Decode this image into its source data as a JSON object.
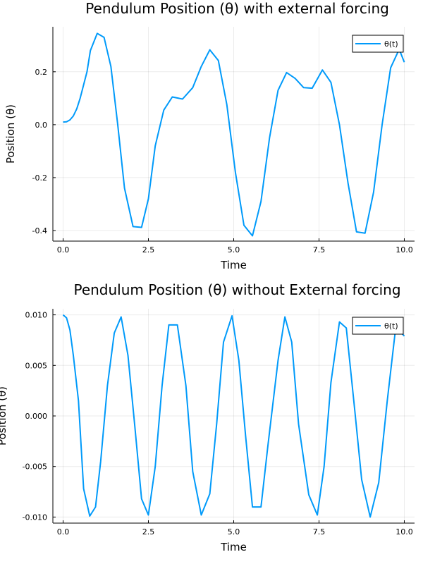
{
  "chart_data": [
    {
      "type": "line",
      "title": "Pendulum Position (θ) with external forcing",
      "xlabel": "Time",
      "ylabel": "Position (θ)",
      "xlim": [
        -0.3,
        10.3
      ],
      "ylim": [
        -0.44,
        0.37
      ],
      "xticks": [
        0,
        2.5,
        5,
        7.5,
        10
      ],
      "xtick_labels": [
        "0.0",
        "2.5",
        "5.0",
        "7.5",
        "10.0"
      ],
      "yticks": [
        -0.4,
        -0.2,
        0,
        0.2
      ],
      "ytick_labels": [
        "-0.4",
        "-0.2",
        "0.0",
        "0.2"
      ],
      "grid": true,
      "legend": "top-right",
      "series": [
        {
          "name": "θ(t)",
          "color": "#009AFA",
          "x": [
            0,
            0.1,
            0.2,
            0.3,
            0.4,
            0.5,
            0.7,
            0.8,
            1.0,
            1.2,
            1.4,
            1.6,
            1.8,
            2.05,
            2.3,
            2.5,
            2.7,
            2.95,
            3.2,
            3.5,
            3.8,
            4.05,
            4.3,
            4.55,
            4.8,
            5.05,
            5.3,
            5.55,
            5.8,
            6.05,
            6.3,
            6.55,
            6.8,
            7.05,
            7.3,
            7.6,
            7.85,
            8.1,
            8.35,
            8.6,
            8.85,
            9.1,
            9.35,
            9.6,
            9.85,
            10.0
          ],
          "y": [
            0.01,
            0.011,
            0.018,
            0.033,
            0.06,
            0.1,
            0.2,
            0.28,
            0.345,
            0.33,
            0.22,
            0.0,
            -0.24,
            -0.385,
            -0.388,
            -0.28,
            -0.08,
            0.055,
            0.105,
            0.097,
            0.14,
            0.22,
            0.283,
            0.243,
            0.075,
            -0.18,
            -0.38,
            -0.42,
            -0.29,
            -0.05,
            0.13,
            0.197,
            0.175,
            0.14,
            0.138,
            0.207,
            0.16,
            0.0,
            -0.22,
            -0.405,
            -0.41,
            -0.255,
            0.0,
            0.215,
            0.285,
            0.236
          ]
        }
      ]
    },
    {
      "type": "line",
      "title": "Pendulum Position (θ) without External forcing",
      "xlabel": "Time",
      "ylabel": "Position (θ)",
      "xlim": [
        -0.3,
        10.3
      ],
      "ylim": [
        -0.0106,
        0.0106
      ],
      "xticks": [
        0,
        2.5,
        5,
        7.5,
        10
      ],
      "xtick_labels": [
        "0.0",
        "2.5",
        "5.0",
        "7.5",
        "10.0"
      ],
      "yticks": [
        -0.01,
        -0.005,
        0,
        0.005,
        0.01
      ],
      "ytick_labels": [
        "-0.010",
        "-0.005",
        "0.000",
        "0.005",
        "0.010"
      ],
      "grid": true,
      "legend": "top-right",
      "series": [
        {
          "name": "θ(t)",
          "color": "#009AFA",
          "x": [
            0,
            0.1,
            0.2,
            0.3,
            0.45,
            0.6,
            0.78,
            0.95,
            1.1,
            1.3,
            1.5,
            1.7,
            1.9,
            2.1,
            2.3,
            2.5,
            2.7,
            2.9,
            3.1,
            3.35,
            3.6,
            3.8,
            4.05,
            4.3,
            4.5,
            4.7,
            4.95,
            5.15,
            5.35,
            5.55,
            5.8,
            6.0,
            6.3,
            6.5,
            6.7,
            6.9,
            7.2,
            7.45,
            7.65,
            7.85,
            8.1,
            8.3,
            8.55,
            8.75,
            9.0,
            9.25,
            9.5,
            9.75,
            10.0
          ],
          "y": [
            0.01,
            0.0097,
            0.0085,
            0.006,
            0.0015,
            -0.0072,
            -0.0099,
            -0.009,
            -0.0045,
            0.003,
            0.0082,
            0.0098,
            0.006,
            -0.001,
            -0.0082,
            -0.0098,
            -0.005,
            0.003,
            0.009,
            0.009,
            0.003,
            -0.0055,
            -0.0098,
            -0.0077,
            -0.0008,
            0.0073,
            0.0099,
            0.0055,
            -0.002,
            -0.009,
            -0.009,
            -0.003,
            0.0055,
            0.0098,
            0.0073,
            -0.0008,
            -0.0078,
            -0.0098,
            -0.005,
            0.0033,
            0.0093,
            0.0087,
            0.0005,
            -0.0063,
            -0.01,
            -0.0066,
            0.0015,
            0.0088,
            0.0079
          ]
        }
      ]
    }
  ]
}
